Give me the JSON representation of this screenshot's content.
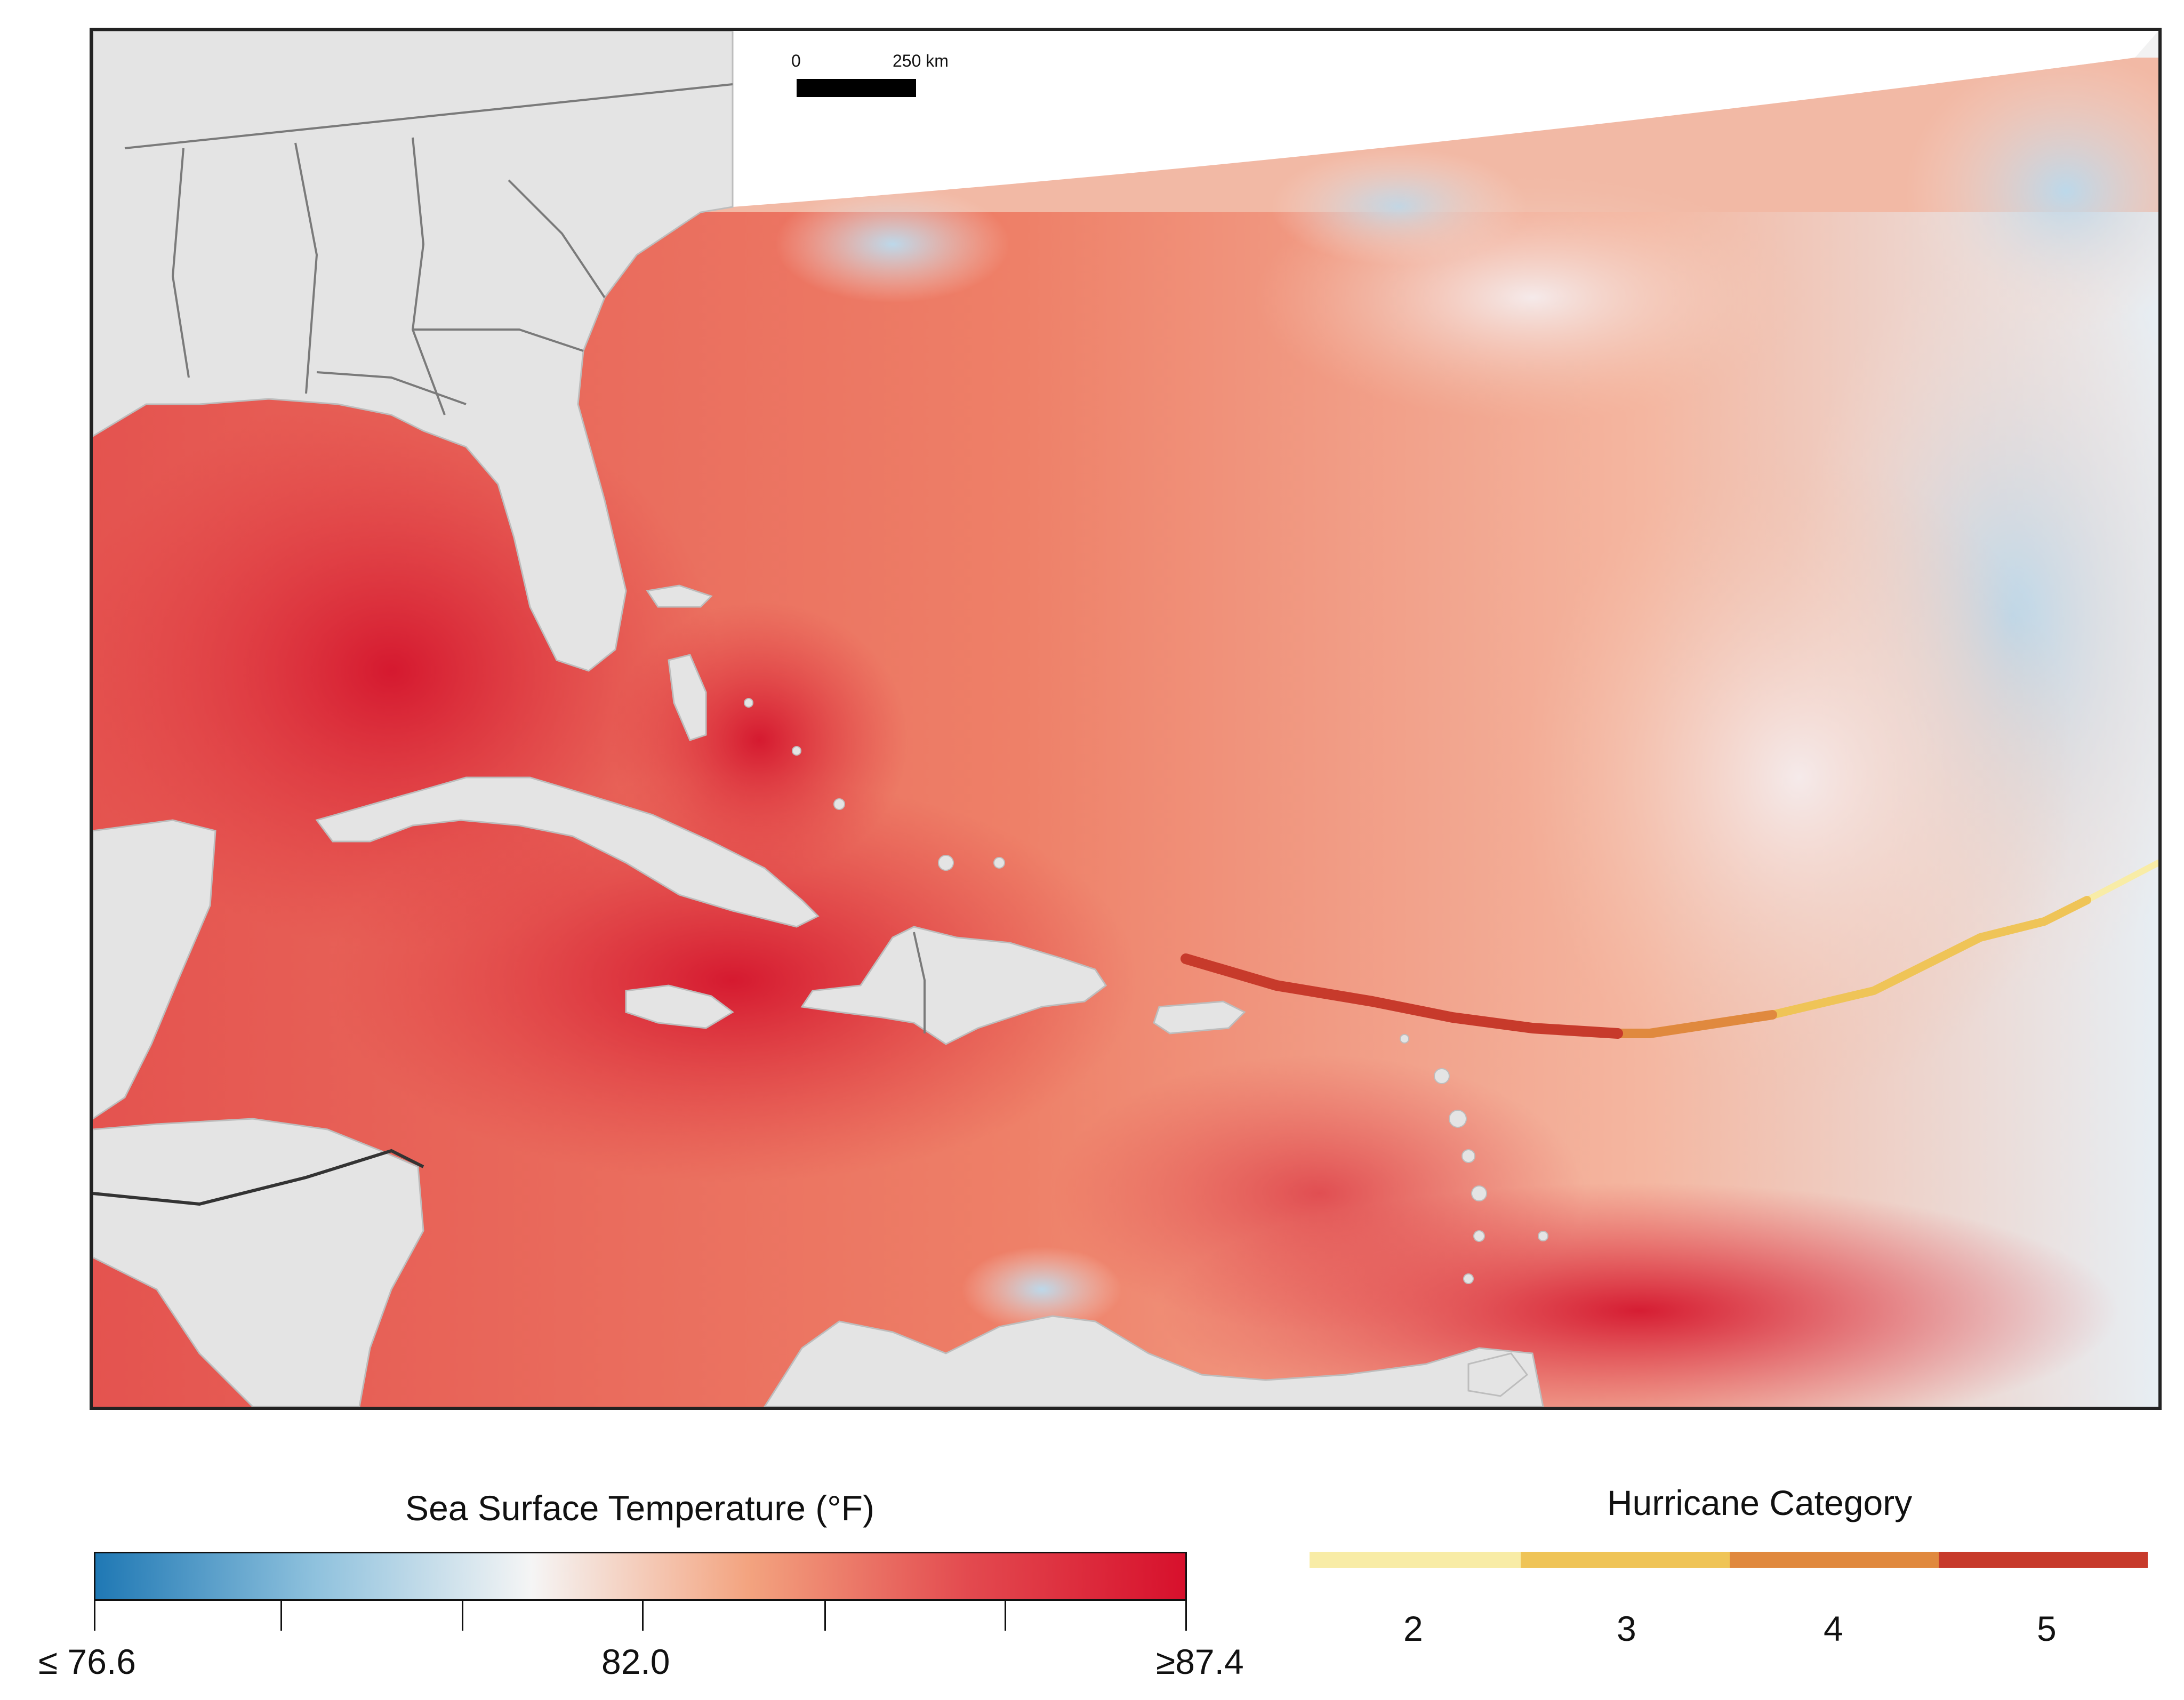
{
  "map": {
    "scale_bar": {
      "start_label": "0",
      "end_label": "250 km"
    }
  },
  "sst_legend": {
    "title": "Sea Surface Temperature (°F)",
    "min_label": "≤ 76.6",
    "mid_label": "82.0",
    "max_label": "≥87.4",
    "colors": [
      "#1f78b4",
      "#8ec1dd",
      "#f5f5f5",
      "#f3a37f",
      "#e34a4f",
      "#d7102c"
    ]
  },
  "hurricane_legend": {
    "title": "Hurricane Category",
    "categories": [
      {
        "label": "2",
        "color": "#f8eca6"
      },
      {
        "label": "3",
        "color": "#efc457"
      },
      {
        "label": "4",
        "color": "#e0893e"
      },
      {
        "label": "5",
        "color": "#c73a2b"
      }
    ]
  }
}
